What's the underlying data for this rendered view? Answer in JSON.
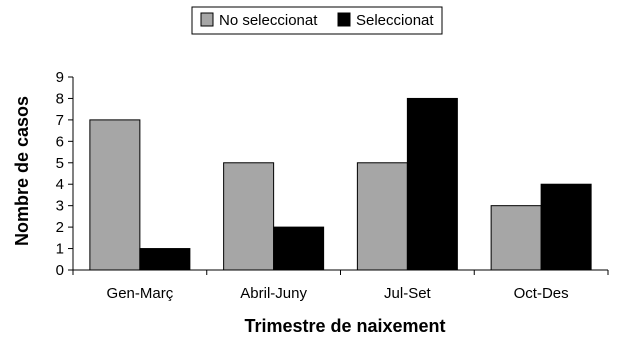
{
  "chart_data": {
    "type": "bar",
    "title": "",
    "xlabel": "Trimestre de naixement",
    "ylabel": "Nombre de casos",
    "categories": [
      "Gen-Març",
      "Abril-Juny",
      "Jul-Set",
      "Oct-Des"
    ],
    "series": [
      {
        "name": "No seleccionat",
        "values": [
          7,
          5,
          5,
          3
        ],
        "color": "#a6a6a6"
      },
      {
        "name": "Seleccionat",
        "values": [
          1,
          2,
          8,
          4
        ],
        "color": "#000000"
      }
    ],
    "ylim": [
      0,
      9
    ],
    "yticks": [
      "0",
      "1",
      "2",
      "3",
      "4",
      "5",
      "6",
      "7",
      "8",
      "9"
    ],
    "grid": false,
    "legend_position": "top"
  }
}
